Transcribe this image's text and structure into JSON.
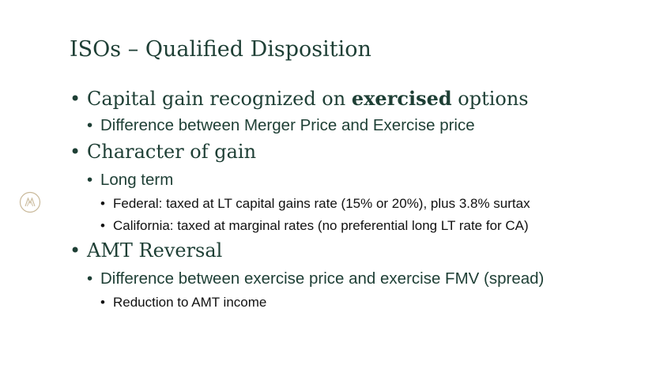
{
  "slide": {
    "title": "ISOs – Qualified Disposition",
    "bullet_char": "•",
    "b1": {
      "prefix": "Capital gain recognized on ",
      "bold": "exercised",
      "suffix": " options"
    },
    "b1_1": "Difference between Merger Price and Exercise price",
    "b2": "Character of gain",
    "b2_1": "Long term",
    "b2_1_1": "Federal: taxed at LT capital gains rate (15% or 20%), plus 3.8% surtax",
    "b2_1_2": "California: taxed at marginal rates (no preferential long LT rate for CA)",
    "b3": "AMT Reversal",
    "b3_1": "Difference between exercise price and exercise FMV (spread)",
    "b3_1_1": "Reduction to AMT income"
  },
  "colors": {
    "heading": "#1e3f35",
    "body": "#111111",
    "logo": "#c9b99a"
  },
  "icons": {
    "logo": "firm-monogram-logo-icon"
  }
}
